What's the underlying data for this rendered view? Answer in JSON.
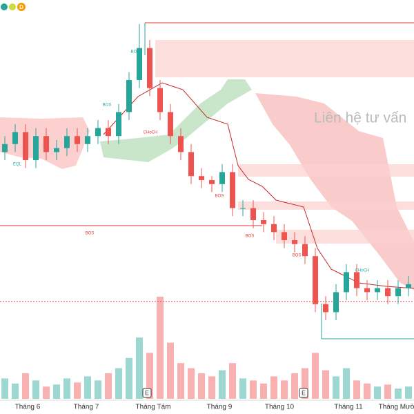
{
  "chart_data": {
    "type": "candlestick",
    "watermark": "Liên hệ tư vấn",
    "interval": "D",
    "categories": [
      "Tháng 6",
      "Tháng 7",
      "Tháng Tám",
      "Tháng 9",
      "Tháng 10",
      "Tháng 11",
      "Tháng Mười Hai"
    ],
    "open": [
      62,
      64,
      67,
      60,
      66,
      62,
      63,
      66,
      64,
      66,
      68,
      66,
      72,
      80,
      88,
      78,
      72,
      66,
      62,
      56,
      55,
      54,
      57,
      48,
      48,
      45,
      44,
      42,
      40,
      39,
      36,
      24,
      22,
      27,
      32,
      28,
      27,
      28,
      26,
      28
    ],
    "high": [
      66,
      69,
      69,
      68,
      68,
      65,
      68,
      68,
      68,
      70,
      70,
      74,
      82,
      94,
      90,
      80,
      74,
      68,
      64,
      58,
      56,
      59,
      59,
      50,
      50,
      47,
      46,
      44,
      42,
      41,
      38,
      26,
      29,
      34,
      34,
      30,
      30,
      30,
      30,
      31
    ],
    "low": [
      60,
      62,
      58,
      58,
      60,
      60,
      61,
      62,
      62,
      64,
      64,
      64,
      70,
      78,
      76,
      70,
      64,
      60,
      54,
      53,
      52,
      52,
      46,
      46,
      43,
      42,
      40,
      38,
      37,
      34,
      22,
      20,
      20,
      25,
      26,
      25,
      25,
      24,
      24,
      26
    ],
    "close": [
      64,
      67,
      60,
      66,
      62,
      63,
      66,
      64,
      66,
      68,
      66,
      72,
      80,
      88,
      78,
      72,
      66,
      62,
      56,
      55,
      54,
      57,
      48,
      48,
      45,
      44,
      42,
      40,
      39,
      36,
      24,
      22,
      27,
      32,
      28,
      27,
      28,
      26,
      28,
      29
    ],
    "volume": [
      20,
      15,
      25,
      18,
      12,
      14,
      20,
      16,
      22,
      18,
      25,
      30,
      40,
      60,
      45,
      100,
      55,
      35,
      30,
      25,
      22,
      28,
      35,
      20,
      18,
      15,
      22,
      18,
      25,
      30,
      45,
      28,
      22,
      30,
      18,
      15,
      12,
      14,
      10,
      12
    ],
    "up_color": "#26a69a",
    "down_color": "#ef5350",
    "ylim": [
      0,
      100
    ],
    "vlim": [
      0,
      100
    ],
    "annotations": [
      "BOS",
      "BOS",
      "EQL",
      "CHoCH",
      "BOS",
      "BOS",
      "BOS",
      "BOS",
      "CHoCH",
      "E",
      "E"
    ]
  }
}
